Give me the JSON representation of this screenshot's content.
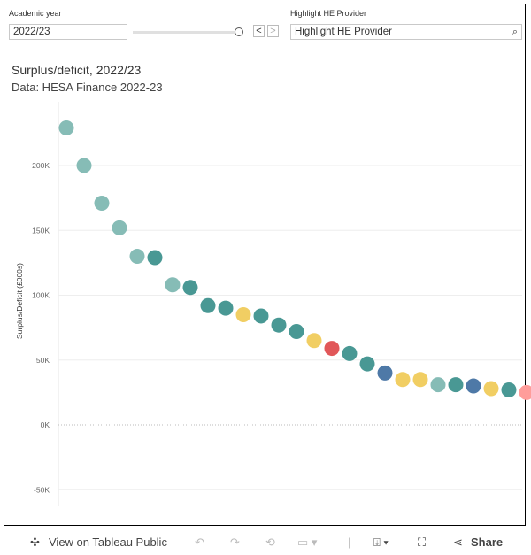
{
  "filters": {
    "year_label": "Academic year",
    "year_value": "2022/23",
    "provider_label": "Highlight HE Provider",
    "provider_placeholder": "Highlight HE Provider",
    "prev": "<",
    "next": ">"
  },
  "chart_data": {
    "type": "scatter",
    "title": "Surplus/deficit, 2022/23",
    "subtitle": "Data: HESA Finance 2022-23",
    "ylabel": "Surplus/Deficit (£000s)",
    "xlabel": "",
    "ylim": [
      -65,
      250
    ],
    "yticks": [
      {
        "v": 200,
        "label": "200K"
      },
      {
        "v": 150,
        "label": "150K"
      },
      {
        "v": 100,
        "label": "100K"
      },
      {
        "v": 50,
        "label": "50K"
      },
      {
        "v": 0,
        "label": "0K"
      },
      {
        "v": -50,
        "label": "-50K"
      }
    ],
    "colors": {
      "light": "#86bcb6",
      "dark": "#499894",
      "yellow": "#f1ce63",
      "red": "#e15759",
      "blue": "#4e79a7",
      "pink": "#ff9d9a"
    },
    "points": [
      {
        "rank": 1,
        "value": 229,
        "group": "light"
      },
      {
        "rank": 2,
        "value": 200,
        "group": "light"
      },
      {
        "rank": 3,
        "value": 171,
        "group": "light"
      },
      {
        "rank": 4,
        "value": 152,
        "group": "light"
      },
      {
        "rank": 5,
        "value": 130,
        "group": "light"
      },
      {
        "rank": 6,
        "value": 129,
        "group": "dark"
      },
      {
        "rank": 7,
        "value": 108,
        "group": "light"
      },
      {
        "rank": 8,
        "value": 106,
        "group": "dark"
      },
      {
        "rank": 9,
        "value": 92,
        "group": "dark"
      },
      {
        "rank": 10,
        "value": 90,
        "group": "dark"
      },
      {
        "rank": 11,
        "value": 85,
        "group": "yellow"
      },
      {
        "rank": 12,
        "value": 84,
        "group": "dark"
      },
      {
        "rank": 13,
        "value": 77,
        "group": "dark"
      },
      {
        "rank": 14,
        "value": 72,
        "group": "dark"
      },
      {
        "rank": 15,
        "value": 65,
        "group": "yellow"
      },
      {
        "rank": 16,
        "value": 59,
        "group": "red"
      },
      {
        "rank": 17,
        "value": 55,
        "group": "dark"
      },
      {
        "rank": 18,
        "value": 47,
        "group": "dark"
      },
      {
        "rank": 19,
        "value": 40,
        "group": "blue"
      },
      {
        "rank": 20,
        "value": 35,
        "group": "yellow"
      },
      {
        "rank": 21,
        "value": 35,
        "group": "yellow"
      },
      {
        "rank": 22,
        "value": 31,
        "group": "light"
      },
      {
        "rank": 23,
        "value": 31,
        "group": "dark"
      },
      {
        "rank": 24,
        "value": 30,
        "group": "blue"
      },
      {
        "rank": 25,
        "value": 28,
        "group": "yellow"
      },
      {
        "rank": 26,
        "value": 27,
        "group": "dark"
      },
      {
        "rank": 27,
        "value": 25,
        "group": "pink"
      }
    ]
  },
  "toolbar": {
    "view": "View on Tableau Public",
    "share": "Share"
  }
}
